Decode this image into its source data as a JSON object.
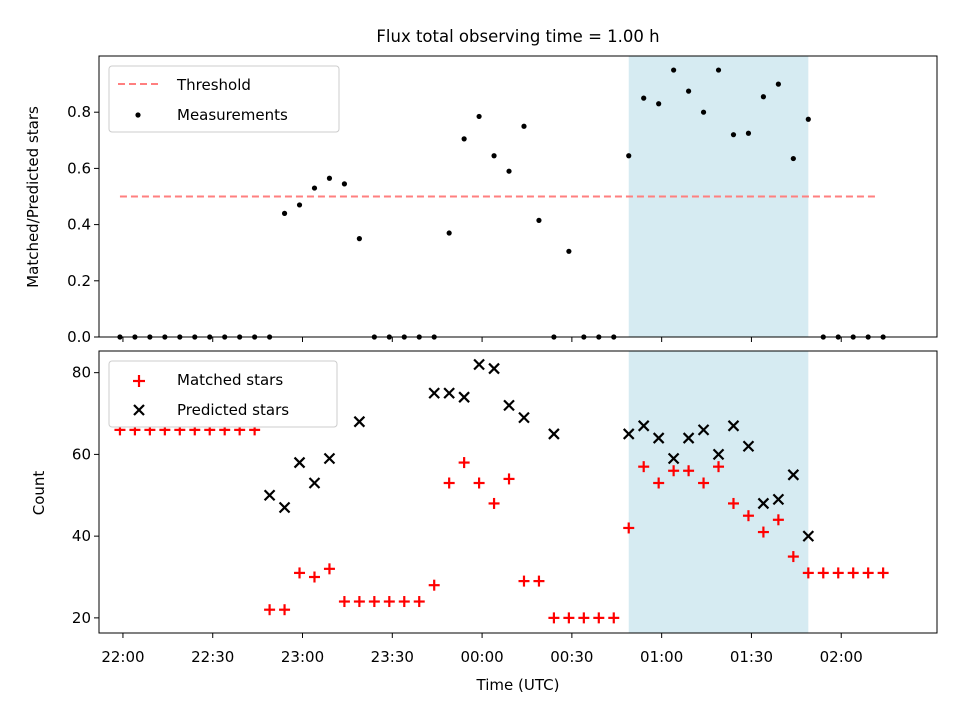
{
  "title": "Flux total observing time = 1.00 h",
  "colors": {
    "threshold": "#ff7f7f",
    "measurements": "#000000",
    "matched": "#ff0000",
    "predicted": "#000000",
    "highlight": "#add8e6"
  },
  "chart_data": [
    {
      "type": "scatter",
      "panel": "top",
      "ylabel": "Matched/Predicted stars",
      "xlabel": "",
      "xlim": [
        "21:52",
        "02:32"
      ],
      "ylim": [
        0,
        1.0
      ],
      "yticks": [
        0.0,
        0.2,
        0.4,
        0.6,
        0.8
      ],
      "ytick_labels": [
        "0.0",
        "0.2",
        "0.4",
        "0.6",
        "0.8"
      ],
      "x_ticks": [
        "22:00",
        "22:30",
        "23:00",
        "23:30",
        "00:00",
        "00:30",
        "01:00",
        "01:30",
        "02:00"
      ],
      "highlight_span": [
        "00:49",
        "01:49"
      ],
      "legend": {
        "location": "upper-left",
        "entries": [
          "Threshold",
          "Measurements"
        ]
      },
      "threshold": {
        "name": "Threshold",
        "value": 0.5,
        "x": [
          "21:59",
          "02:12"
        ],
        "style": "dashed"
      },
      "series": [
        {
          "name": "Measurements",
          "marker": "dot",
          "x": [
            "21:59",
            "22:04",
            "22:09",
            "22:14",
            "22:19",
            "22:24",
            "22:29",
            "22:34",
            "22:39",
            "22:44",
            "22:49",
            "22:54",
            "22:59",
            "23:04",
            "23:09",
            "23:14",
            "23:19",
            "23:24",
            "23:29",
            "23:34",
            "23:39",
            "23:44",
            "23:49",
            "23:54",
            "23:59",
            "00:04",
            "00:09",
            "00:14",
            "00:19",
            "00:24",
            "00:29",
            "00:34",
            "00:39",
            "00:44",
            "00:49",
            "00:54",
            "00:59",
            "01:04",
            "01:09",
            "01:14",
            "01:19",
            "01:24",
            "01:29",
            "01:34",
            "01:39",
            "01:44",
            "01:49",
            "01:54",
            "01:59",
            "02:04",
            "02:09",
            "02:14"
          ],
          "y": [
            0,
            0,
            0,
            0,
            0,
            0,
            0,
            0,
            0,
            0,
            0,
            0.44,
            0.47,
            0.53,
            0.565,
            0.545,
            0.35,
            0,
            0,
            0,
            0,
            0,
            0.37,
            0.705,
            0.785,
            0.645,
            0.59,
            0.75,
            0.415,
            0,
            0.305,
            0,
            0,
            0,
            0.645,
            0.85,
            0.83,
            0.95,
            0.875,
            0.8,
            0.95,
            0.72,
            0.725,
            0.855,
            0.9,
            0.635,
            0.775,
            0,
            0,
            0,
            0,
            0
          ]
        }
      ]
    },
    {
      "type": "scatter",
      "panel": "bottom",
      "xlabel": "Time (UTC)",
      "ylabel": "Count",
      "xlim": [
        "21:52",
        "02:32"
      ],
      "ylim": [
        16.3,
        85.3
      ],
      "yticks": [
        20,
        40,
        60,
        80
      ],
      "ytick_labels": [
        "20",
        "40",
        "60",
        "80"
      ],
      "x_ticks": [
        "22:00",
        "22:30",
        "23:00",
        "23:30",
        "00:00",
        "00:30",
        "01:00",
        "01:30",
        "02:00"
      ],
      "highlight_span": [
        "00:49",
        "01:49"
      ],
      "legend": {
        "location": "upper-left",
        "entries": [
          "Matched stars",
          "Predicted stars"
        ]
      },
      "series": [
        {
          "name": "Matched stars",
          "marker": "plus",
          "x": [
            "21:59",
            "22:04",
            "22:09",
            "22:14",
            "22:19",
            "22:24",
            "22:29",
            "22:34",
            "22:39",
            "22:44",
            "22:49",
            "22:54",
            "22:59",
            "23:04",
            "23:09",
            "23:14",
            "23:19",
            "23:24",
            "23:29",
            "23:34",
            "23:39",
            "23:44",
            "23:49",
            "23:54",
            "23:59",
            "00:04",
            "00:09",
            "00:14",
            "00:19",
            "00:24",
            "00:29",
            "00:34",
            "00:39",
            "00:44",
            "00:49",
            "00:54",
            "00:59",
            "01:04",
            "01:09",
            "01:14",
            "01:19",
            "01:24",
            "01:29",
            "01:34",
            "01:39",
            "01:44",
            "01:49",
            "01:54",
            "01:59",
            "02:04",
            "02:09",
            "02:14"
          ],
          "y": [
            66,
            66,
            66,
            66,
            66,
            66,
            66,
            66,
            66,
            66,
            22,
            22,
            31,
            30,
            32,
            24,
            24,
            24,
            24,
            24,
            24,
            28,
            53,
            58,
            53,
            48,
            54,
            29,
            29,
            20,
            20,
            20,
            20,
            20,
            42,
            57,
            53,
            56,
            56,
            53,
            57,
            48,
            45,
            41,
            44,
            35,
            31,
            31,
            31,
            31,
            31,
            31
          ]
        },
        {
          "name": "Predicted stars",
          "marker": "x",
          "x": [
            "22:49",
            "22:54",
            "22:59",
            "23:04",
            "23:09",
            "23:19",
            "23:44",
            "23:49",
            "23:54",
            "23:59",
            "00:04",
            "00:09",
            "00:14",
            "00:24",
            "00:49",
            "00:54",
            "00:59",
            "01:04",
            "01:09",
            "01:14",
            "01:19",
            "01:24",
            "01:29",
            "01:34",
            "01:39",
            "01:44",
            "01:49"
          ],
          "y": [
            50,
            47,
            58,
            53,
            59,
            68,
            75,
            75,
            74,
            82,
            81,
            72,
            69,
            65,
            65,
            67,
            64,
            59,
            64,
            66,
            60,
            67,
            62,
            48,
            49,
            55,
            40
          ]
        }
      ]
    }
  ]
}
